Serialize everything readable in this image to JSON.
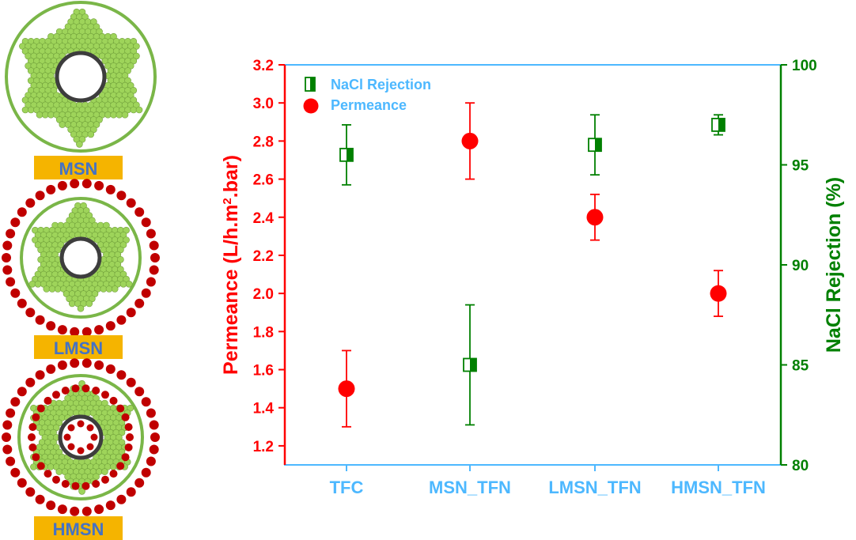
{
  "schematics": {
    "labels": [
      "MSN",
      "LMSN",
      "HMSN"
    ],
    "label_box_color": "#f5b400",
    "label_text_color": "#4472c4",
    "particle_color": "#9ed45a",
    "ring_color": "#7ab648",
    "shell_dot_color": "#c00000"
  },
  "chart_data": {
    "type": "scatter",
    "categories": [
      "TFC",
      "MSN_TFN",
      "LMSN_TFN",
      "HMSN_TFN"
    ],
    "series": [
      {
        "name": "NaCl Rejection",
        "axis": "right",
        "marker": "half-filled-square",
        "color": "#008000",
        "values": [
          95.5,
          85.0,
          96.0,
          97.0
        ],
        "errors": [
          1.5,
          3.0,
          1.5,
          0.5
        ]
      },
      {
        "name": "Permeance",
        "axis": "left",
        "marker": "filled-circle",
        "color": "#ff0000",
        "values": [
          1.5,
          2.8,
          2.4,
          2.0
        ],
        "errors": [
          0.2,
          0.2,
          0.12,
          0.12
        ]
      }
    ],
    "y_left": {
      "label_pre": "Permeance (L/h.m",
      "label_sup": "2",
      "label_post": ".bar)",
      "ylim": [
        1.1,
        3.2
      ],
      "ticks": [
        "1.2",
        "1.4",
        "1.6",
        "1.8",
        "2.0",
        "2.2",
        "2.4",
        "2.6",
        "2.8",
        "3.0",
        "3.2"
      ],
      "color": "#ff0000"
    },
    "y_right": {
      "label": "NaCl Rejection (%)",
      "ylim": [
        80,
        100
      ],
      "ticks": [
        "80",
        "85",
        "90",
        "95",
        "100"
      ],
      "color": "#008000"
    },
    "x_axis_color": "#4db8ff",
    "legend_position": "top-left",
    "legend_text_color": "#4db8ff"
  }
}
